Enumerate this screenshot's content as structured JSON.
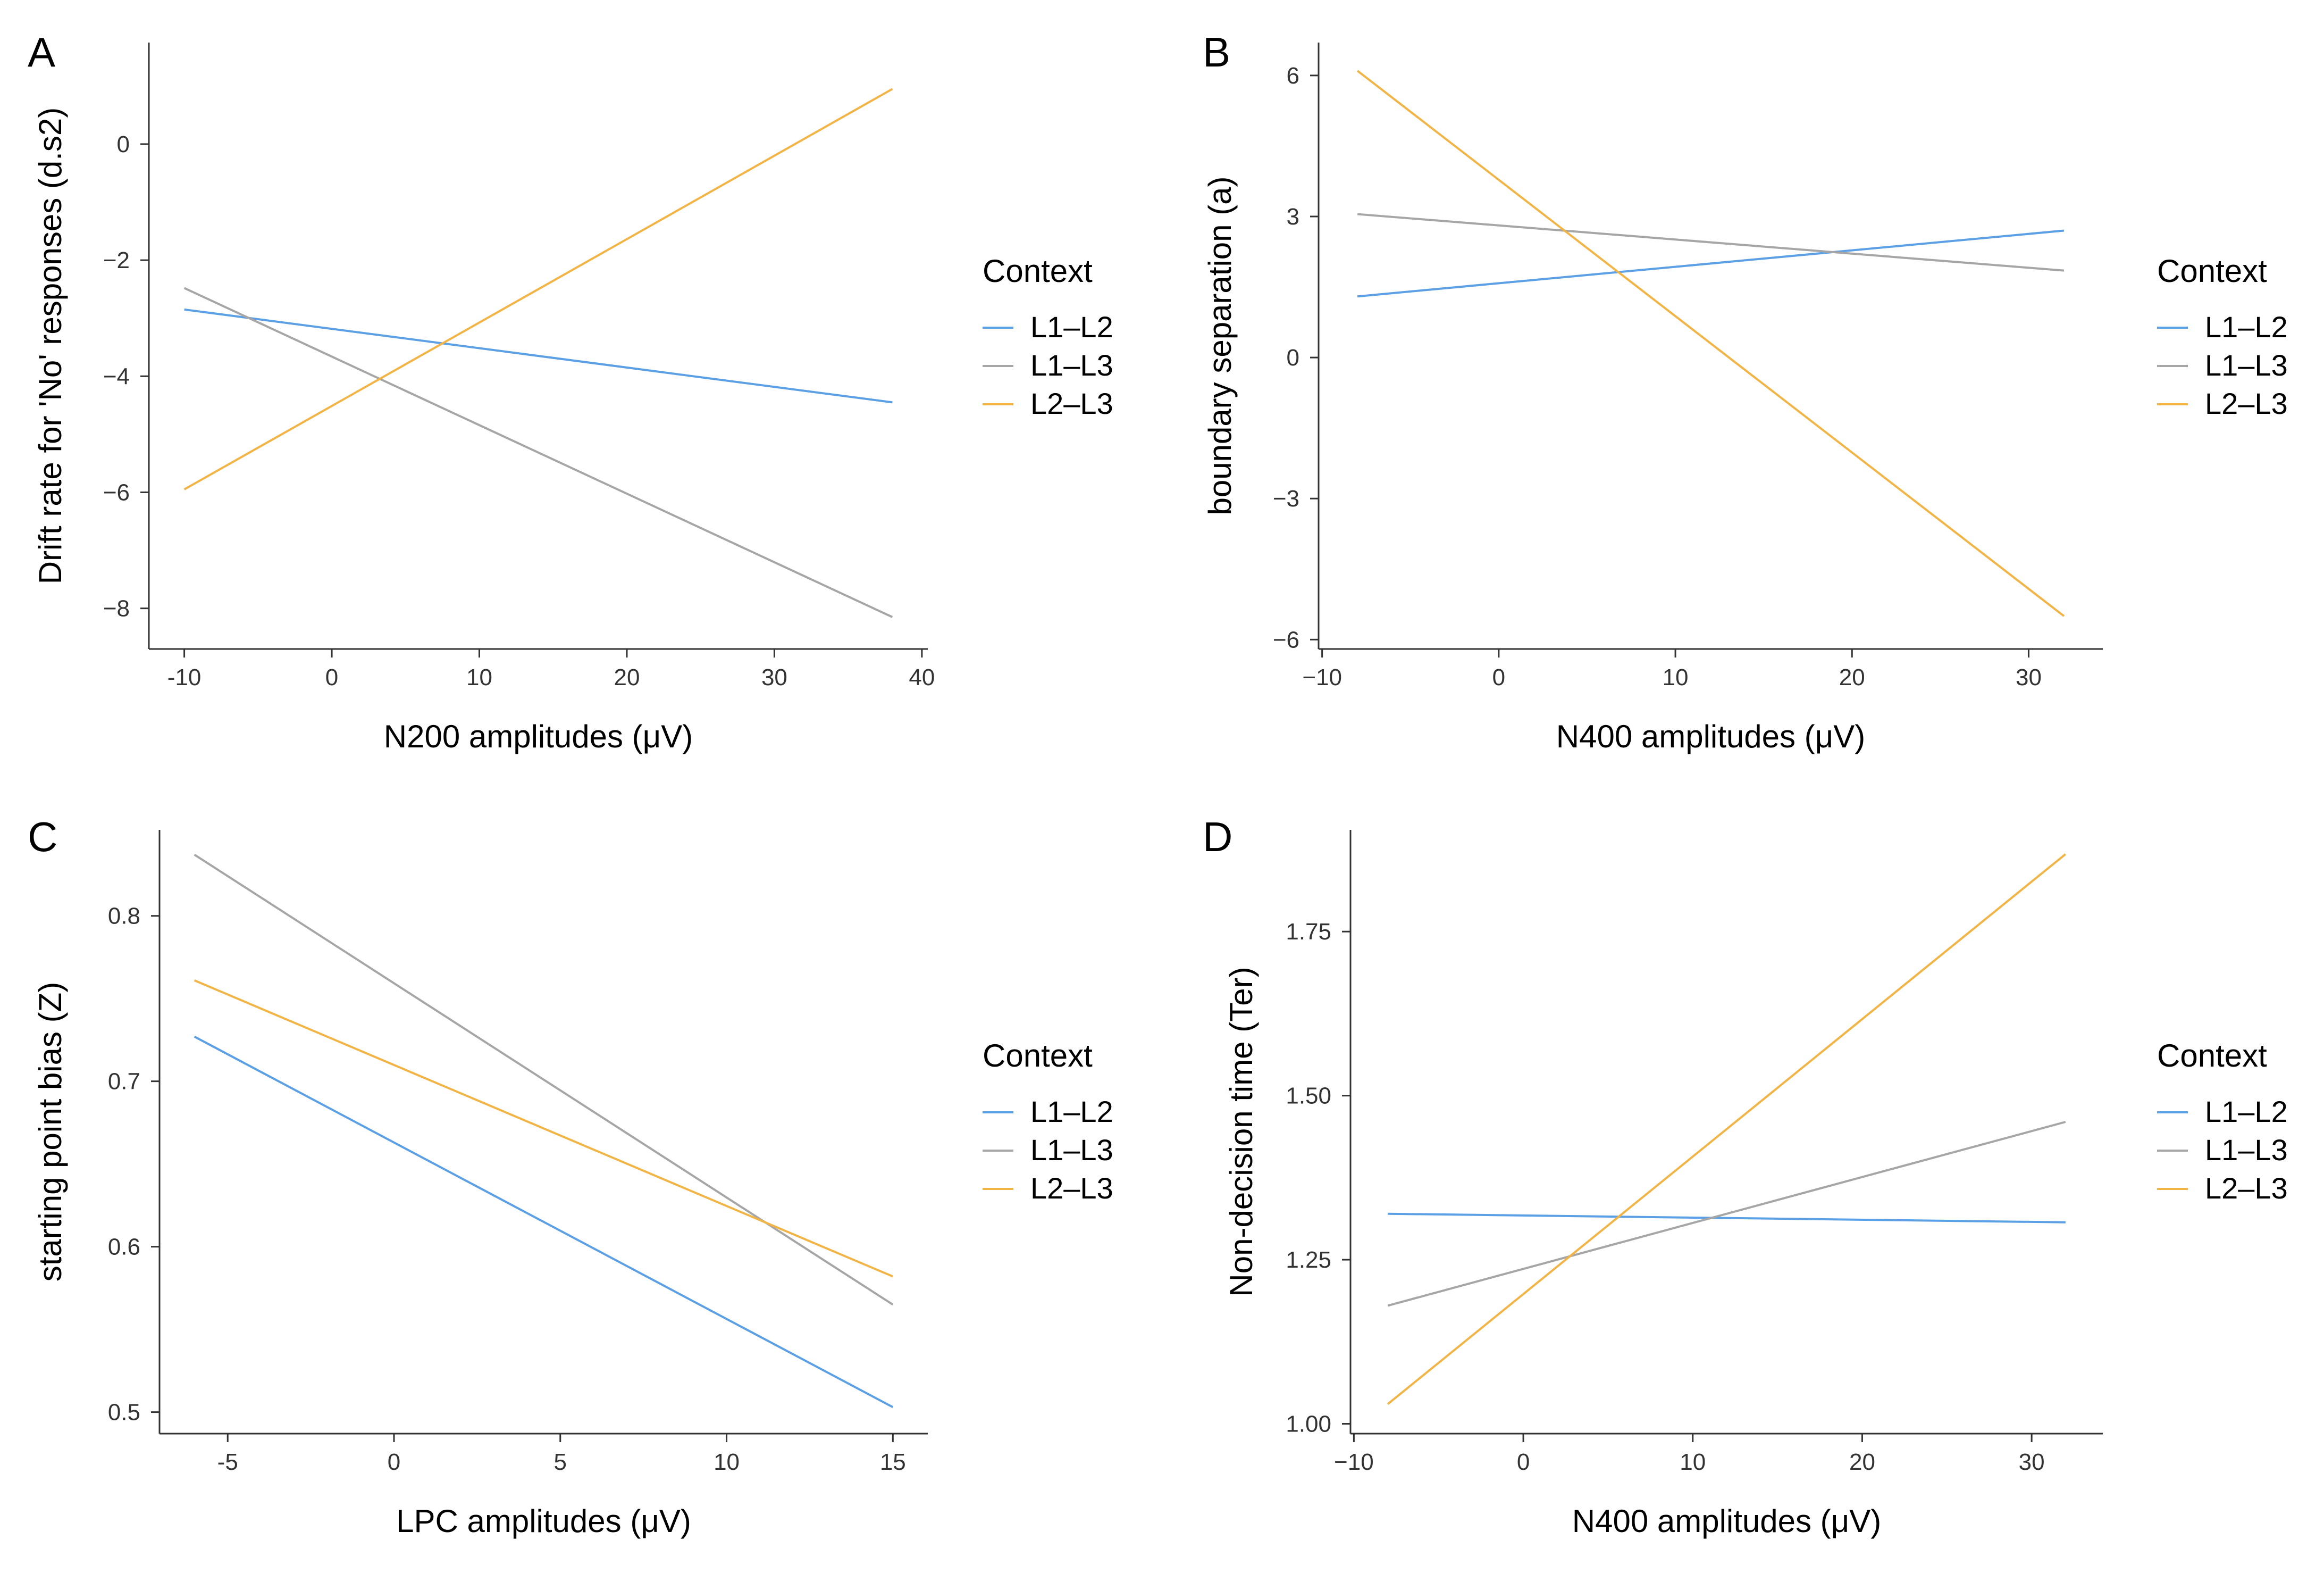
{
  "colors": {
    "L1-L2": "#5b9fe5",
    "L1-L3": "#a6a6a6",
    "L2-L3": "#f2b445"
  },
  "chart_data": [
    {
      "type": "line",
      "panel": "A",
      "xlabel": "N200 amplitudes (μV)",
      "ylabel": "Drift rate for 'No' responses (d.s2)",
      "xlim": [
        -12.4,
        40.4
      ],
      "ylim": [
        -8.7,
        1.75
      ],
      "xticks": [
        -10,
        0,
        10,
        20,
        30,
        40
      ],
      "xtick_labels": [
        "-10",
        "0",
        "10",
        "20",
        "30",
        "40"
      ],
      "yticks": [
        0,
        -2,
        -4,
        -6,
        -8
      ],
      "ytick_labels": [
        "0",
        "−2",
        "−4",
        "−6",
        "−8"
      ],
      "legend": {
        "title": "Context",
        "placement": "right"
      },
      "series": [
        {
          "name": "L1–L2",
          "color_key": "L1-L2",
          "x": [
            -10,
            38
          ],
          "y": [
            -2.85,
            -4.45
          ]
        },
        {
          "name": "L1–L3",
          "color_key": "L1-L3",
          "x": [
            -10,
            38
          ],
          "y": [
            -2.48,
            -8.15
          ]
        },
        {
          "name": "L2–L3",
          "color_key": "L2-L3",
          "x": [
            -10,
            38
          ],
          "y": [
            -5.95,
            0.95
          ]
        }
      ]
    },
    {
      "type": "line",
      "panel": "B",
      "xlabel": "N400 amplitudes (μV)",
      "ylabel": "boundary separation (a)",
      "xlim": [
        -10.2,
        34.2
      ],
      "ylim": [
        -6.2,
        6.7
      ],
      "xticks": [
        -10,
        0,
        10,
        20,
        30
      ],
      "xtick_labels": [
        "−10",
        "0",
        "10",
        "20",
        "30"
      ],
      "yticks": [
        6,
        3,
        0,
        -3,
        -6
      ],
      "ytick_labels": [
        "6",
        "3",
        "0",
        "−3",
        "−6"
      ],
      "legend": {
        "title": "Context",
        "placement": "right"
      },
      "series": [
        {
          "name": "L1–L2",
          "color_key": "L1-L2",
          "x": [
            -8,
            32
          ],
          "y": [
            1.3,
            2.7
          ]
        },
        {
          "name": "L1–L3",
          "color_key": "L1-L3",
          "x": [
            -8,
            32
          ],
          "y": [
            3.05,
            1.85
          ]
        },
        {
          "name": "L2–L3",
          "color_key": "L2-L3",
          "x": [
            -8,
            32
          ],
          "y": [
            6.1,
            -5.5
          ]
        }
      ]
    },
    {
      "type": "line",
      "panel": "C",
      "xlabel": "LPC  amplitudes (μV)",
      "ylabel": "starting point bias (Z)",
      "xlim": [
        -7.05,
        16.05
      ],
      "ylim": [
        0.487,
        0.852
      ],
      "xticks": [
        -5,
        0,
        5,
        10,
        15
      ],
      "xtick_labels": [
        "-5",
        "0",
        "5",
        "10",
        "15"
      ],
      "yticks": [
        0.8,
        0.7,
        0.6,
        0.5
      ],
      "ytick_labels": [
        "0.8",
        "0.7",
        "0.6",
        "0.5"
      ],
      "legend": {
        "title": "Context",
        "placement": "right"
      },
      "series": [
        {
          "name": "L1–L2",
          "color_key": "L1-L2",
          "x": [
            -6,
            15
          ],
          "y": [
            0.727,
            0.503
          ]
        },
        {
          "name": "L1–L3",
          "color_key": "L1-L3",
          "x": [
            -6,
            15
          ],
          "y": [
            0.837,
            0.565
          ]
        },
        {
          "name": "L2–L3",
          "color_key": "L2-L3",
          "x": [
            -6,
            15
          ],
          "y": [
            0.761,
            0.582
          ]
        }
      ]
    },
    {
      "type": "line",
      "panel": "D",
      "xlabel": "N400 amplitudes (μV)",
      "ylabel": "Non-decision time (Ter)",
      "xlim": [
        -10.2,
        34.2
      ],
      "ylim": [
        0.985,
        1.905
      ],
      "xticks": [
        -10,
        0,
        10,
        20,
        30
      ],
      "xtick_labels": [
        "−10",
        "0",
        "10",
        "20",
        "30"
      ],
      "yticks": [
        1.75,
        1.5,
        1.25,
        1.0
      ],
      "ytick_labels": [
        "1.75",
        "1.50",
        "1.25",
        "1.00"
      ],
      "legend": {
        "title": "Context",
        "placement": "right"
      },
      "series": [
        {
          "name": "L1–L2",
          "color_key": "L1-L2",
          "x": [
            -8,
            32
          ],
          "y": [
            1.32,
            1.307
          ]
        },
        {
          "name": "L1–L3",
          "color_key": "L1-L3",
          "x": [
            -8,
            32
          ],
          "y": [
            1.18,
            1.46
          ]
        },
        {
          "name": "L2–L3",
          "color_key": "L2-L3",
          "x": [
            -8,
            32
          ],
          "y": [
            1.03,
            1.868
          ]
        }
      ]
    }
  ]
}
